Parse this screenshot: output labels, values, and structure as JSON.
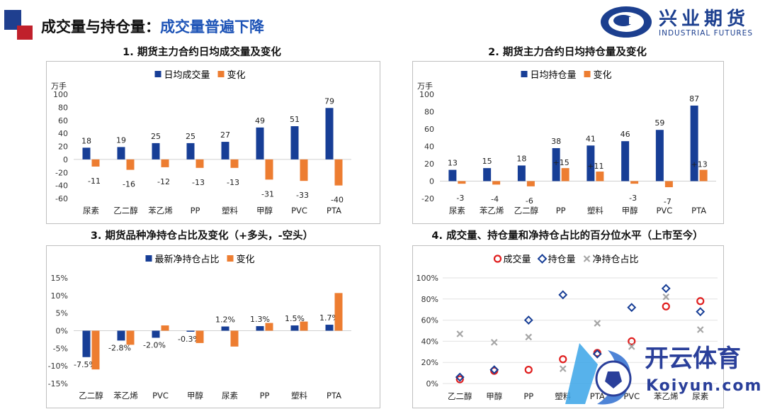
{
  "header": {
    "title_prefix": "成交量与持仓量：",
    "title_accent": "成交量普遍下降"
  },
  "logo": {
    "cn": "兴业期货",
    "en": "INDUSTRIAL FUTURES"
  },
  "watermark": {
    "text": "开云体育",
    "url": "Koiyun.com"
  },
  "colors": {
    "blue": "#173e96",
    "orange": "#ed7d31",
    "red": "#e02020",
    "gray": "#a6a6a6",
    "accent": "#1e54b7"
  },
  "chart_data": [
    {
      "title": "1. 期货主力合约日均成交量及变化",
      "type": "bar",
      "unit": "万手",
      "categories": [
        "尿素",
        "乙二醇",
        "苯乙烯",
        "PP",
        "塑料",
        "甲醇",
        "PVC",
        "PTA"
      ],
      "series": [
        {
          "name": "日均成交量",
          "values": [
            18,
            19,
            25,
            25,
            27,
            49,
            51,
            79
          ],
          "labels": [
            "18",
            "19",
            "25",
            "25",
            "27",
            "49",
            "51",
            "79"
          ]
        },
        {
          "name": "变化",
          "values": [
            -11,
            -16,
            -12,
            -13,
            -13,
            -31,
            -33,
            -40
          ],
          "labels": [
            "-11",
            "-16",
            "-12",
            "-13",
            "-13",
            "-31",
            "-33",
            "-40"
          ]
        }
      ],
      "ylim": [
        -60,
        100
      ],
      "yticks": [
        -60,
        -40,
        -20,
        0,
        20,
        40,
        60,
        80,
        100
      ],
      "ytick_labels": [
        "-60",
        "-40",
        "-20",
        "0",
        "20",
        "40",
        "60",
        "80",
        "100"
      ],
      "legend": "top"
    },
    {
      "title": "2. 期货主力合约日均持仓量及变化",
      "type": "bar",
      "unit": "万手",
      "categories": [
        "尿素",
        "苯乙烯",
        "乙二醇",
        "PP",
        "塑料",
        "甲醇",
        "PVC",
        "PTA"
      ],
      "series": [
        {
          "name": "日均持仓量",
          "values": [
            13,
            15,
            18,
            38,
            41,
            46,
            59,
            87
          ],
          "labels": [
            "13",
            "15",
            "18",
            "38",
            "41",
            "46",
            "59",
            "87"
          ]
        },
        {
          "name": "变化",
          "values": [
            -3,
            -4,
            -6,
            15,
            11,
            -3,
            -7,
            13
          ],
          "labels": [
            "-3",
            "-4",
            "-6",
            "+15",
            "+11",
            "-3",
            "-7",
            "+13"
          ]
        }
      ],
      "ylim": [
        -20,
        100
      ],
      "yticks": [
        -20,
        0,
        20,
        40,
        60,
        80,
        100
      ],
      "ytick_labels": [
        "-20",
        "0",
        "20",
        "40",
        "60",
        "80",
        "100"
      ],
      "legend": "top"
    },
    {
      "title": "3. 期货品种净持仓占比及变化（+多头，-空头）",
      "type": "bar",
      "unit": "",
      "categories": [
        "乙二醇",
        "苯乙烯",
        "PVC",
        "甲醇",
        "尿素",
        "PP",
        "塑料",
        "PTA"
      ],
      "series": [
        {
          "name": "最新净持仓占比",
          "values": [
            -7.5,
            -2.8,
            -2.0,
            -0.3,
            1.2,
            1.3,
            1.5,
            1.7
          ],
          "labels": [
            "-7.5%",
            "-2.8%",
            "-2.0%",
            "-0.3%",
            "1.2%",
            "1.3%",
            "1.5%",
            "1.7%"
          ]
        },
        {
          "name": "变化",
          "values": [
            -11.0,
            -4.0,
            1.5,
            -3.5,
            -4.5,
            2.2,
            2.6,
            10.7
          ],
          "labels": []
        }
      ],
      "ylim": [
        -15,
        15
      ],
      "yticks": [
        -15,
        -10,
        -5,
        0,
        5,
        10,
        15
      ],
      "ytick_labels": [
        "-15%",
        "-10%",
        "-5%",
        "0%",
        "5%",
        "10%",
        "15%"
      ],
      "legend": "top"
    },
    {
      "title": "4. 成交量、持仓量和净持仓占比的百分位水平（上市至今）",
      "type": "scatter",
      "unit": "",
      "categories": [
        "乙二醇",
        "甲醇",
        "PP",
        "塑料",
        "PTA",
        "PVC",
        "苯乙烯",
        "尿素"
      ],
      "series": [
        {
          "name": "成交量",
          "marker": "circle",
          "values": [
            4,
            12,
            13,
            23,
            29,
            40,
            73,
            78
          ]
        },
        {
          "name": "持仓量",
          "marker": "diamond",
          "values": [
            6,
            13,
            60,
            84,
            28,
            72,
            90,
            68
          ]
        },
        {
          "name": "净持仓占比",
          "marker": "x",
          "values": [
            47,
            39,
            44,
            14,
            57,
            35,
            82,
            51
          ]
        }
      ],
      "ylim": [
        0,
        100
      ],
      "yticks": [
        0,
        20,
        40,
        60,
        80,
        100
      ],
      "ytick_labels": [
        "0%",
        "20%",
        "40%",
        "60%",
        "80%",
        "100%"
      ],
      "legend": "top"
    }
  ]
}
